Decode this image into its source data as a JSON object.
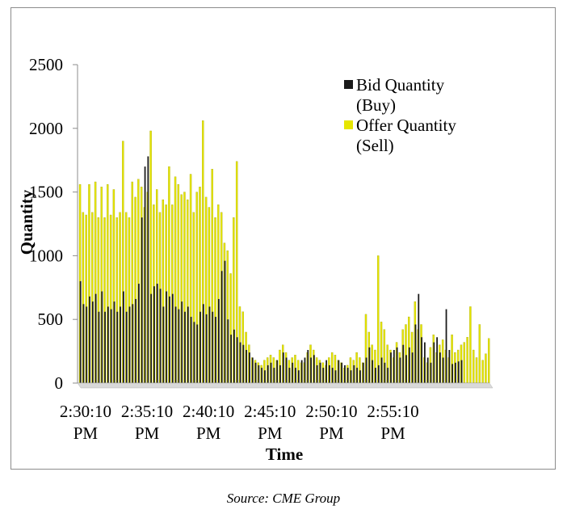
{
  "chart_data": {
    "type": "bar",
    "title": "",
    "xlabel": "Time",
    "ylabel": "Quantity",
    "ylim": [
      0,
      2500
    ],
    "yticks": [
      "0",
      "500",
      "1000",
      "1500",
      "2000",
      "2500"
    ],
    "ytick_values": [
      0,
      500,
      1000,
      1500,
      2000,
      2500
    ],
    "xtick_labels": [
      {
        "time": "2:30:10",
        "suffix": "PM",
        "index": 0
      },
      {
        "time": "2:35:10",
        "suffix": "PM",
        "index": 20
      },
      {
        "time": "2:40:10",
        "suffix": "PM",
        "index": 40
      },
      {
        "time": "2:45:10",
        "suffix": "PM",
        "index": 60
      },
      {
        "time": "2:50:10",
        "suffix": "PM",
        "index": 80
      },
      {
        "time": "2:55:10",
        "suffix": "PM",
        "index": 100
      }
    ],
    "legend": [
      {
        "line1": "Bid Quantity",
        "line2": "(Buy)",
        "color": "#1a1a1a"
      },
      {
        "line1": "Offer Quantity",
        "line2": "(Sell)",
        "color": "#e6e600"
      }
    ],
    "series": [
      {
        "name": "Bid Quantity (Buy)",
        "color": "#1a1a1a",
        "values": [
          800,
          620,
          600,
          680,
          640,
          700,
          560,
          720,
          560,
          600,
          580,
          640,
          560,
          600,
          720,
          560,
          600,
          620,
          660,
          780,
          1300,
          1700,
          1780,
          700,
          760,
          780,
          740,
          600,
          720,
          680,
          700,
          600,
          580,
          640,
          560,
          600,
          520,
          480,
          460,
          560,
          620,
          540,
          600,
          560,
          520,
          660,
          880,
          960,
          500,
          380,
          420,
          360,
          320,
          300,
          260,
          240,
          200,
          160,
          140,
          120,
          100,
          140,
          160,
          120,
          180,
          140,
          240,
          200,
          120,
          160,
          120,
          100,
          180,
          200,
          260,
          200,
          220,
          140,
          160,
          120,
          180,
          140,
          120,
          100,
          180,
          160,
          140,
          120,
          100,
          140,
          120,
          100,
          160,
          200,
          280,
          180,
          120,
          140,
          200,
          160,
          120,
          240,
          260,
          280,
          200,
          300,
          220,
          280,
          240,
          460,
          700,
          360,
          320,
          200,
          160,
          320,
          360,
          240,
          200,
          580,
          260,
          150,
          160,
          170,
          180
        ],
        "segments": [
          {
            "start": 0,
            "end": 124
          }
        ]
      },
      {
        "name": "Offer Quantity (Sell)",
        "color": "#e6e600",
        "values": [
          1560,
          1340,
          1320,
          1560,
          1340,
          1580,
          1300,
          1540,
          1300,
          1560,
          1320,
          1520,
          1300,
          1340,
          1900,
          1340,
          1300,
          1580,
          1460,
          1600,
          1540,
          1380,
          1500,
          1980,
          1400,
          1520,
          1340,
          1440,
          1400,
          1700,
          1400,
          1620,
          1560,
          1480,
          1500,
          1440,
          1640,
          1340,
          1500,
          1540,
          2060,
          1460,
          1380,
          1680,
          1300,
          1400,
          1340,
          1100,
          1040,
          860,
          1300,
          1740,
          600,
          560,
          400,
          300,
          200,
          180,
          160,
          140,
          180,
          200,
          220,
          200,
          180,
          260,
          300,
          240,
          180,
          200,
          220,
          180,
          160,
          160,
          240,
          300,
          260,
          200,
          180,
          160,
          140,
          200,
          240,
          220,
          180,
          160,
          120,
          140,
          200,
          180,
          240,
          200,
          160,
          540,
          400,
          300,
          260,
          1000,
          480,
          420,
          300,
          260,
          200,
          320,
          240,
          420,
          460,
          520,
          400,
          640,
          420,
          460,
          200,
          160,
          280,
          380,
          240,
          300,
          340,
          260,
          200,
          380,
          240,
          260,
          300,
          320,
          360,
          600,
          260,
          200,
          460,
          180,
          230,
          350
        ]
      }
    ]
  },
  "source_note": "Source:  CME Group"
}
